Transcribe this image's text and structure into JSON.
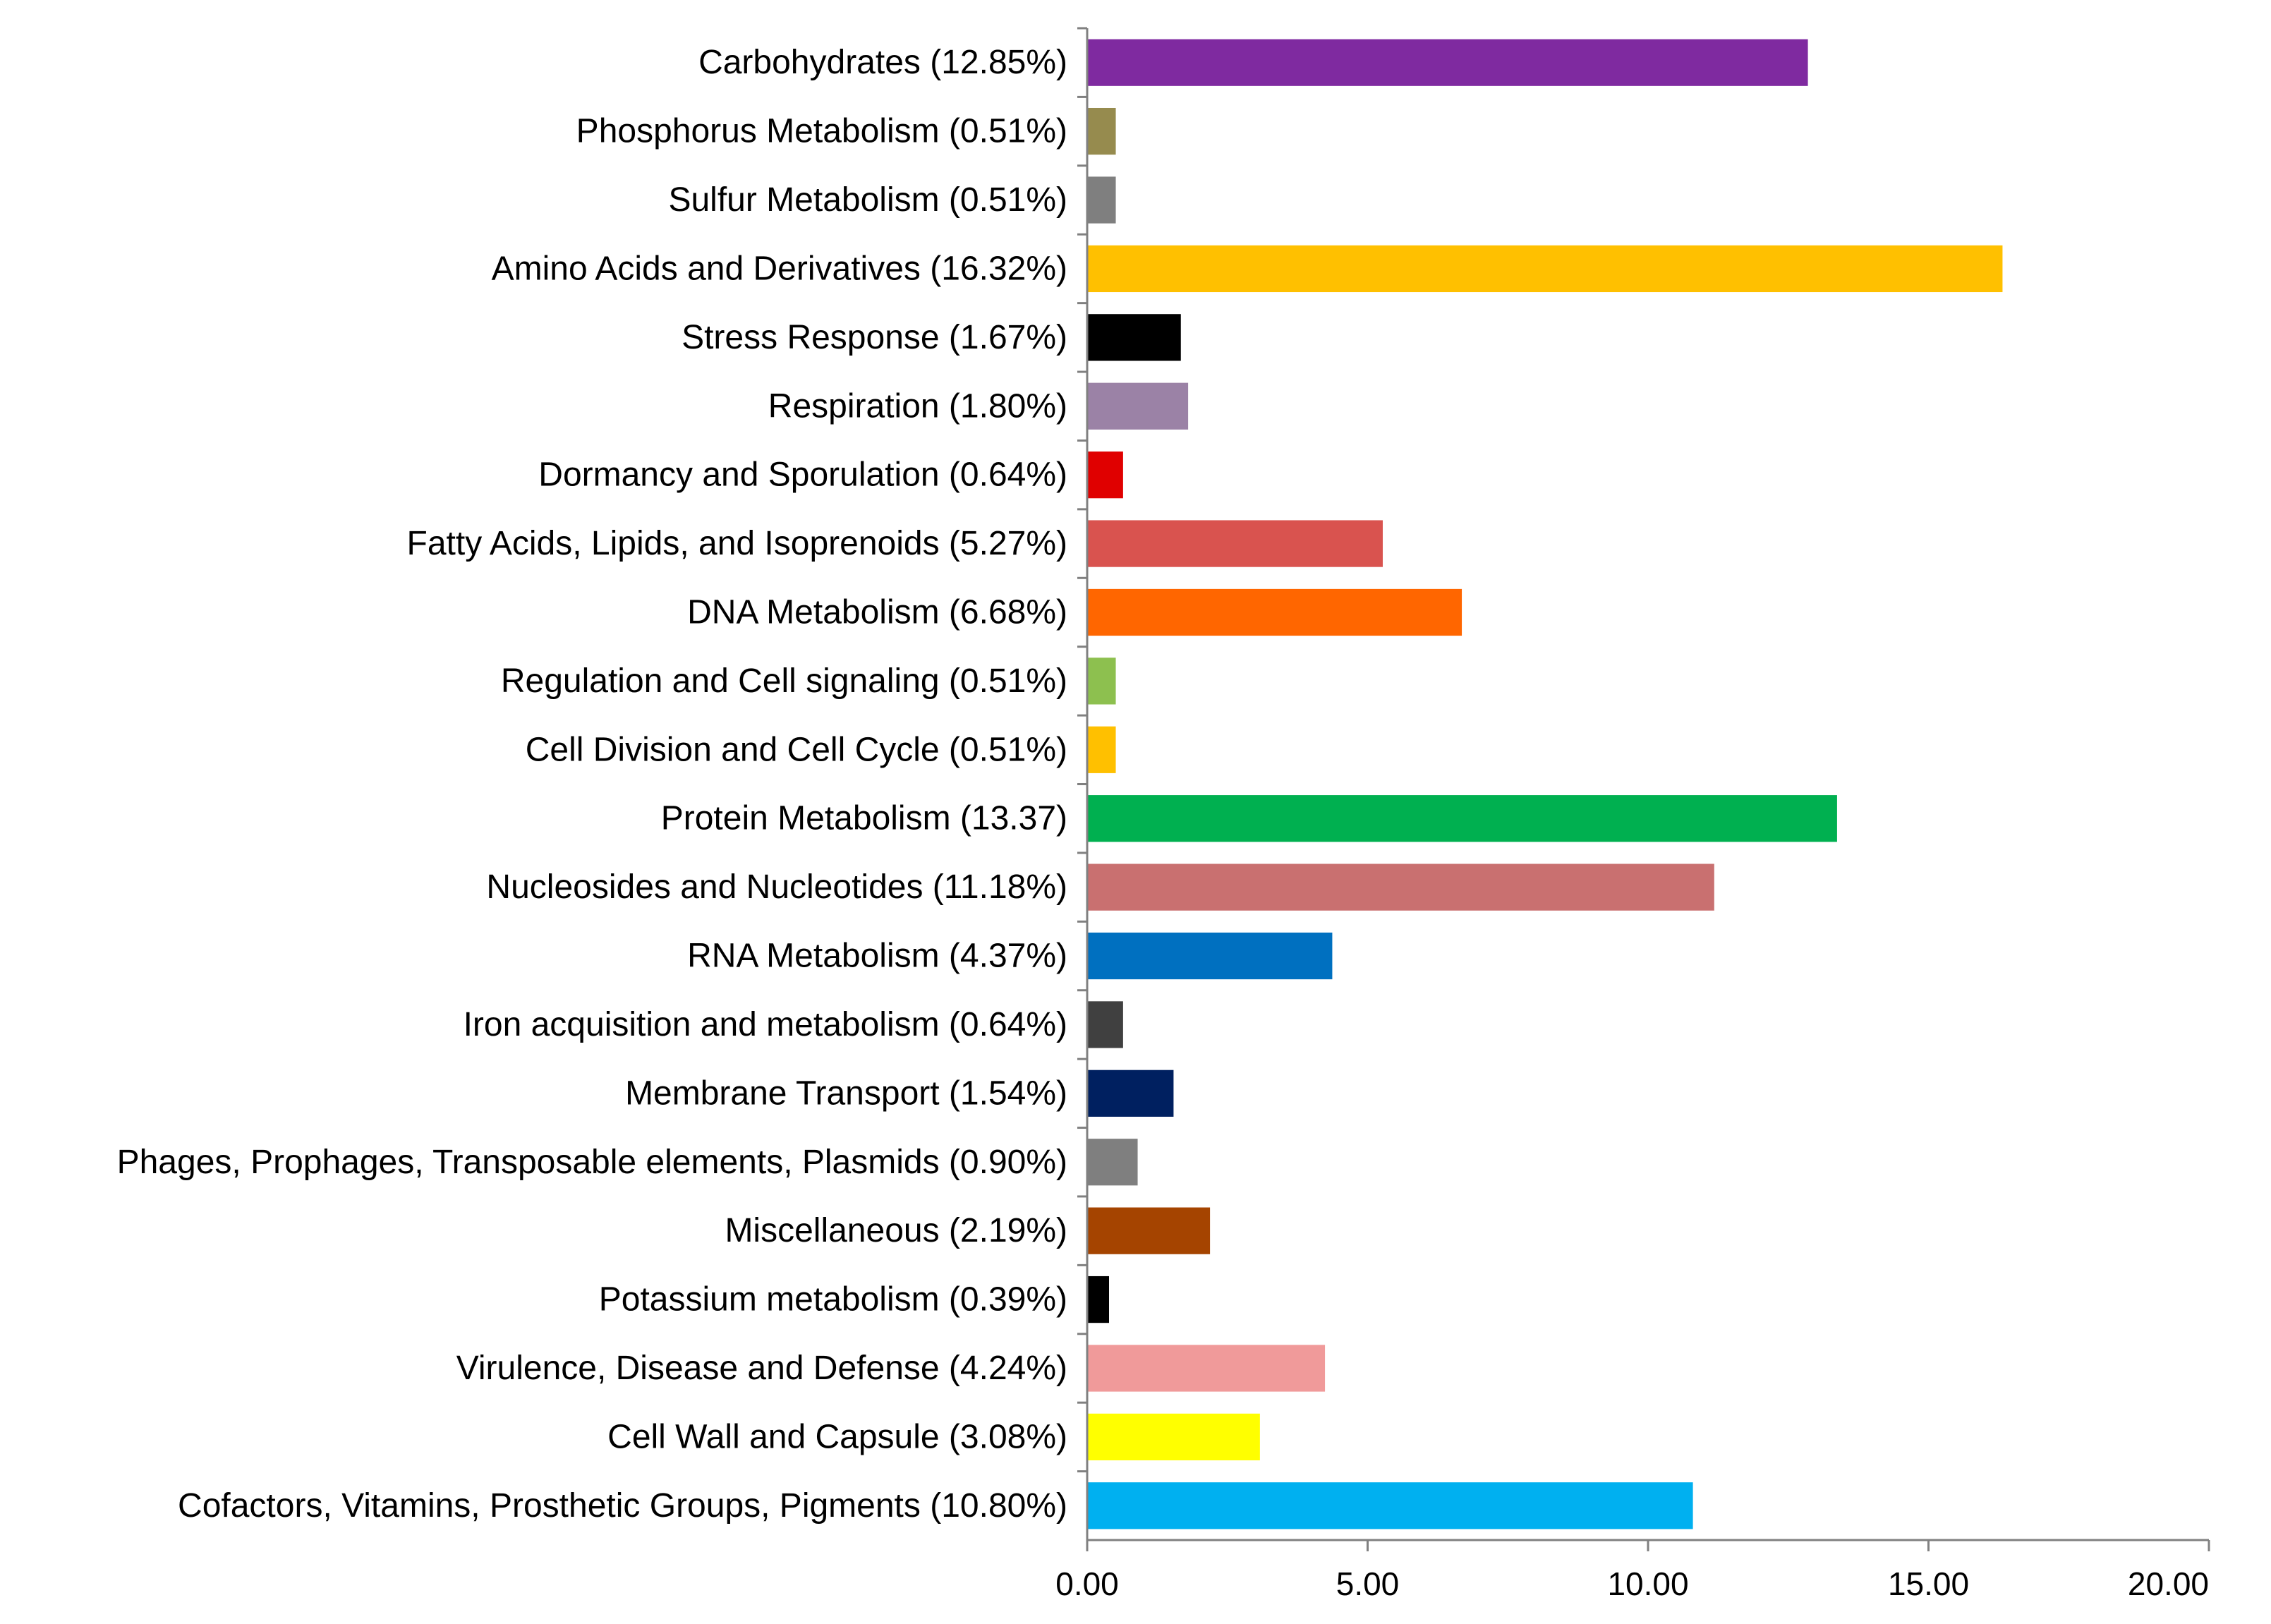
{
  "chart_data": {
    "type": "bar",
    "orientation": "horizontal",
    "title": "",
    "xlabel": "",
    "ylabel": "",
    "xlim": [
      0,
      20
    ],
    "xticks": [
      "0.00",
      "5.00",
      "10.00",
      "15.00",
      "20.00"
    ],
    "grid": false,
    "legend": "none",
    "categories": [
      "Carbohydrates (12.85%)",
      "Phosphorus Metabolism (0.51%)",
      "Sulfur Metabolism (0.51%)",
      "Amino Acids and Derivatives (16.32%)",
      "Stress Response (1.67%)",
      "Respiration (1.80%)",
      "Dormancy and Sporulation (0.64%)",
      "Fatty Acids, Lipids, and Isoprenoids (5.27%)",
      "DNA Metabolism (6.68%)",
      "Regulation and Cell signaling (0.51%)",
      "Cell Division and Cell Cycle (0.51%)",
      "Protein Metabolism (13.37)",
      "Nucleosides and Nucleotides (11.18%)",
      "RNA Metabolism (4.37%)",
      "Iron acquisition and metabolism (0.64%)",
      "Membrane Transport (1.54%)",
      "Phages, Prophages, Transposable elements, Plasmids (0.90%)",
      "Miscellaneous (2.19%)",
      "Potassium metabolism (0.39%)",
      "Virulence, Disease and Defense (4.24%)",
      "Cell Wall and Capsule (3.08%)",
      "Cofactors, Vitamins, Prosthetic Groups, Pigments (10.80%)"
    ],
    "values": [
      12.85,
      0.51,
      0.51,
      16.32,
      1.67,
      1.8,
      0.64,
      5.27,
      6.68,
      0.51,
      0.51,
      13.37,
      11.18,
      4.37,
      0.64,
      1.54,
      0.9,
      2.19,
      0.39,
      4.24,
      3.08,
      10.8
    ],
    "colors": [
      "#7F2AA0",
      "#968B4E",
      "#7F7F7F",
      "#FFC000",
      "#000000",
      "#9B82A6",
      "#E00000",
      "#D9534F",
      "#FF6600",
      "#8DC04F",
      "#FFC000",
      "#00B050",
      "#C97070",
      "#0070C0",
      "#404040",
      "#002060",
      "#7F7F7F",
      "#A54400",
      "#000000",
      "#F09A9A",
      "#FFFF00",
      "#00B0F0"
    ]
  }
}
